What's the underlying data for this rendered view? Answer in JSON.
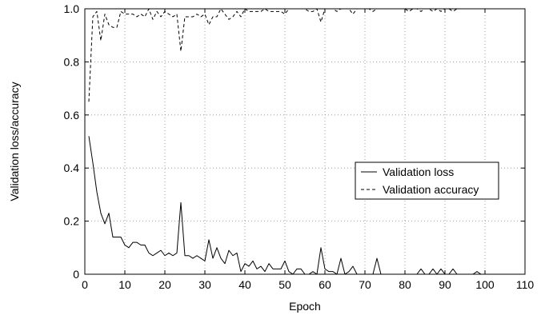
{
  "chart_data": {
    "type": "line",
    "title": "",
    "xlabel": "Epoch",
    "ylabel": "Validation loss/accuracy",
    "xlim": [
      0,
      110
    ],
    "ylim": [
      0,
      1.0
    ],
    "xticks": [
      0,
      10,
      20,
      30,
      40,
      50,
      60,
      70,
      80,
      90,
      100,
      110
    ],
    "yticks": [
      0,
      0.2,
      0.4,
      0.6,
      0.8,
      1.0
    ],
    "xtick_labels": [
      "0",
      "10",
      "20",
      "30",
      "40",
      "50",
      "60",
      "70",
      "80",
      "90",
      "100",
      "110"
    ],
    "ytick_labels": [
      "0",
      "0.2",
      "0.4",
      "0.6",
      "0.8",
      "1.0"
    ],
    "grid": true,
    "legend_position": "center-right",
    "series": [
      {
        "name": "Validation loss",
        "dash": "solid",
        "color": "#000000",
        "x": [
          1,
          2,
          3,
          4,
          5,
          6,
          7,
          8,
          9,
          10,
          11,
          12,
          13,
          14,
          15,
          16,
          17,
          18,
          19,
          20,
          21,
          22,
          23,
          24,
          25,
          26,
          27,
          28,
          29,
          30,
          31,
          32,
          33,
          34,
          35,
          36,
          37,
          38,
          39,
          40,
          41,
          42,
          43,
          44,
          45,
          46,
          47,
          48,
          49,
          50,
          51,
          52,
          53,
          54,
          55,
          56,
          57,
          58,
          59,
          60,
          61,
          62,
          63,
          64,
          65,
          66,
          67,
          68,
          69,
          70,
          71,
          72,
          73,
          74,
          75,
          76,
          77,
          78,
          79,
          80,
          81,
          82,
          83,
          84,
          85,
          86,
          87,
          88,
          89,
          90,
          91,
          92,
          93,
          94,
          95,
          96,
          97,
          98,
          99,
          100
        ],
        "y": [
          0.52,
          0.42,
          0.31,
          0.23,
          0.19,
          0.23,
          0.14,
          0.14,
          0.14,
          0.11,
          0.1,
          0.12,
          0.12,
          0.11,
          0.11,
          0.08,
          0.07,
          0.08,
          0.09,
          0.07,
          0.08,
          0.07,
          0.08,
          0.27,
          0.07,
          0.07,
          0.06,
          0.07,
          0.06,
          0.05,
          0.13,
          0.06,
          0.1,
          0.06,
          0.04,
          0.09,
          0.07,
          0.08,
          0.01,
          0.04,
          0.03,
          0.05,
          0.02,
          0.03,
          0.01,
          0.04,
          0.02,
          0.02,
          0.02,
          0.05,
          0.01,
          0.0,
          0.02,
          0.02,
          0.0,
          0.0,
          0.01,
          0.0,
          0.1,
          0.02,
          0.01,
          0.01,
          0.0,
          0.06,
          0.0,
          0.01,
          0.03,
          0.0,
          0.0,
          0.0,
          0.0,
          0.0,
          0.06,
          0.0,
          0.0,
          0.0,
          0.0,
          0.0,
          0.0,
          0.0,
          0.0,
          0.0,
          0.0,
          0.02,
          0.0,
          0.0,
          0.02,
          0.0,
          0.02,
          0.0,
          0.0,
          0.02,
          0.0,
          0.0,
          0.0,
          0.0,
          0.0,
          0.01,
          0.0,
          0.0
        ]
      },
      {
        "name": "Validation accuracy",
        "dash": "dashed",
        "color": "#000000",
        "x": [
          1,
          2,
          3,
          4,
          5,
          6,
          7,
          8,
          9,
          10,
          11,
          12,
          13,
          14,
          15,
          16,
          17,
          18,
          19,
          20,
          21,
          22,
          23,
          24,
          25,
          26,
          27,
          28,
          29,
          30,
          31,
          32,
          33,
          34,
          35,
          36,
          37,
          38,
          39,
          40,
          41,
          42,
          43,
          44,
          45,
          46,
          47,
          48,
          49,
          50,
          51,
          52,
          53,
          54,
          55,
          56,
          57,
          58,
          59,
          60,
          61,
          62,
          63,
          64,
          65,
          66,
          67,
          68,
          69,
          70,
          71,
          72,
          73,
          74,
          75,
          76,
          77,
          78,
          79,
          80,
          81,
          82,
          83,
          84,
          85,
          86,
          87,
          88,
          89,
          90,
          91,
          92,
          93,
          94,
          95,
          96,
          97,
          98,
          99,
          100
        ],
        "y": [
          0.65,
          0.97,
          0.99,
          0.88,
          0.98,
          0.94,
          0.93,
          0.93,
          0.99,
          0.98,
          0.98,
          0.98,
          0.97,
          0.98,
          0.97,
          1.0,
          0.96,
          0.99,
          0.97,
          0.99,
          0.98,
          0.97,
          0.98,
          0.84,
          0.97,
          0.97,
          0.97,
          0.98,
          0.97,
          0.98,
          0.94,
          0.97,
          0.97,
          1.0,
          0.98,
          0.96,
          0.97,
          0.99,
          0.97,
          1.0,
          0.99,
          0.99,
          0.99,
          0.99,
          1.0,
          0.99,
          0.99,
          0.99,
          0.99,
          0.98,
          1.0,
          1.0,
          1.0,
          1.0,
          1.0,
          0.99,
          0.99,
          1.0,
          0.95,
          1.0,
          1.0,
          1.0,
          0.99,
          1.0,
          1.0,
          1.0,
          0.98,
          1.0,
          1.0,
          1.0,
          1.0,
          0.99,
          1.0,
          1.0,
          1.0,
          1.0,
          1.0,
          1.0,
          1.0,
          1.0,
          0.99,
          1.0,
          1.0,
          0.99,
          1.0,
          1.0,
          0.99,
          1.0,
          0.99,
          1.0,
          1.0,
          0.99,
          1.0,
          1.0,
          1.0,
          1.0,
          1.0,
          1.0,
          1.0,
          1.0
        ]
      }
    ]
  }
}
